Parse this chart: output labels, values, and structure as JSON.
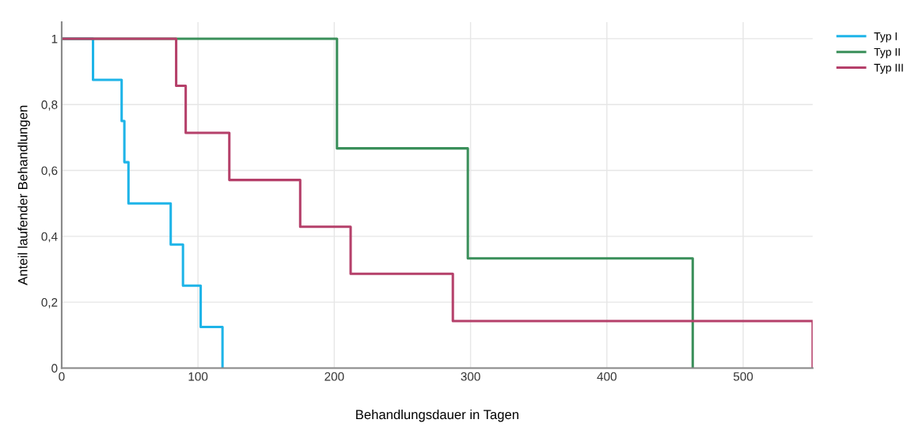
{
  "chart_data": {
    "type": "step",
    "xlabel": "Behandlungsdauer in Tagen",
    "ylabel": "Anteil laufender Behandlungen",
    "xlim": [
      0,
      551
    ],
    "xticks": [
      0,
      100,
      200,
      300,
      400,
      500
    ],
    "ylim": [
      0,
      1.05
    ],
    "yticks": [
      {
        "value": 0,
        "label": "0"
      },
      {
        "value": 0.2,
        "label": "0,2"
      },
      {
        "value": 0.4,
        "label": "0,4"
      },
      {
        "value": 0.6,
        "label": "0,6"
      },
      {
        "value": 0.8,
        "label": "0,8"
      },
      {
        "value": 1,
        "label": "1"
      }
    ],
    "grid": true,
    "legend": "top right",
    "marker": "none",
    "line_style": "solid",
    "series": [
      {
        "name": "Typ I",
        "color": "#1eb4e8",
        "x": [
          0,
          23,
          44,
          46,
          49,
          80,
          89,
          102,
          118
        ],
        "values": [
          1,
          0.875,
          0.75,
          0.625,
          0.5,
          0.375,
          0.25,
          0.125,
          0
        ]
      },
      {
        "name": "Typ II",
        "color": "#3a8f5a",
        "x": [
          0,
          202,
          298,
          463
        ],
        "values": [
          1,
          0.667,
          0.333,
          0
        ]
      },
      {
        "name": "Typ III",
        "color": "#b5406a",
        "x": [
          0,
          84,
          91,
          123,
          175,
          212,
          287,
          551
        ],
        "values": [
          1,
          0.857,
          0.714,
          0.571,
          0.429,
          0.286,
          0.143,
          0
        ]
      }
    ]
  }
}
